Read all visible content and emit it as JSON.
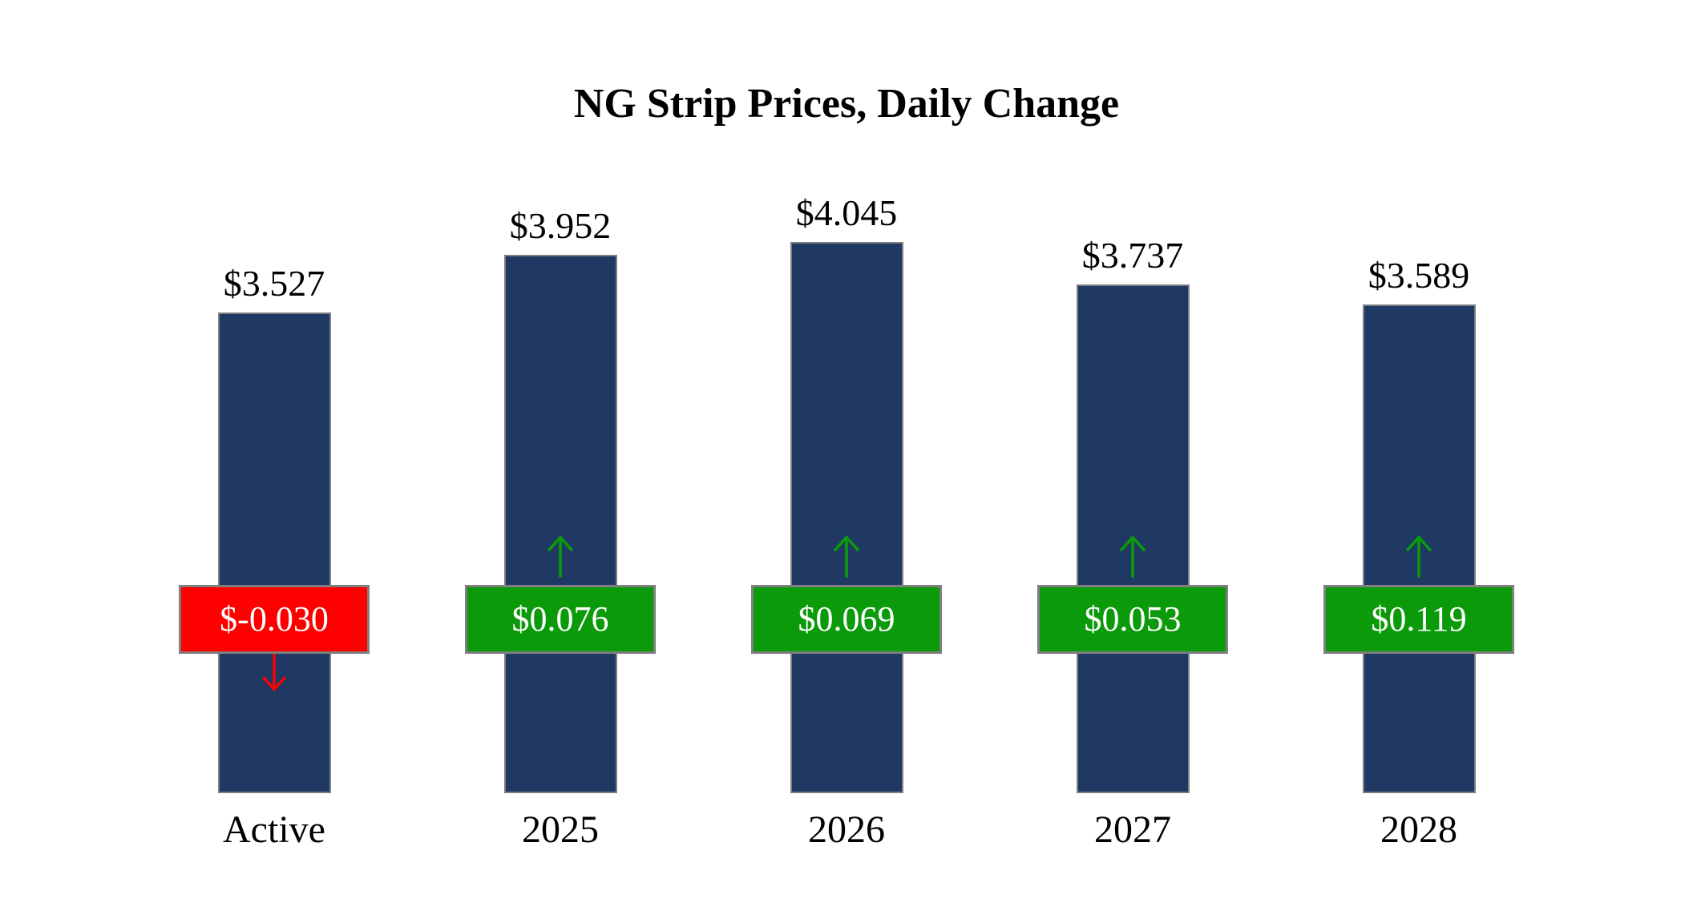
{
  "title": "NG Strip Prices, Daily Change",
  "colors": {
    "bar_fill": "#1f3864",
    "bar_border": "#808080",
    "badge_border": "#7f7f7f",
    "positive": "#0a9a0a",
    "negative": "#ff0000",
    "text": "#000000",
    "badge_text": "#ffffff",
    "background": "#ffffff"
  },
  "chart_data": {
    "type": "bar",
    "title": "NG Strip Prices, Daily Change",
    "xlabel": "",
    "ylabel": "",
    "ylim": [
      0,
      4.045
    ],
    "grid": false,
    "legend": false,
    "categories": [
      "Active",
      "2025",
      "2026",
      "2027",
      "2028"
    ],
    "values": [
      3.527,
      3.952,
      4.045,
      3.737,
      3.589
    ],
    "daily_changes": [
      -0.03,
      0.076,
      0.069,
      0.053,
      0.119
    ],
    "bars": [
      {
        "category": "Active",
        "price": 3.527,
        "price_label": "$3.527",
        "change": -0.03,
        "change_label": "$-0.030",
        "direction": "down"
      },
      {
        "category": "2025",
        "price": 3.952,
        "price_label": "$3.952",
        "change": 0.076,
        "change_label": "$0.076",
        "direction": "up"
      },
      {
        "category": "2026",
        "price": 4.045,
        "price_label": "$4.045",
        "change": 0.069,
        "change_label": "$0.069",
        "direction": "up"
      },
      {
        "category": "2027",
        "price": 3.737,
        "price_label": "$3.737",
        "change": 0.053,
        "change_label": "$0.053",
        "direction": "up"
      },
      {
        "category": "2028",
        "price": 3.589,
        "price_label": "$3.589",
        "change": 0.119,
        "change_label": "$0.119",
        "direction": "up"
      }
    ]
  }
}
